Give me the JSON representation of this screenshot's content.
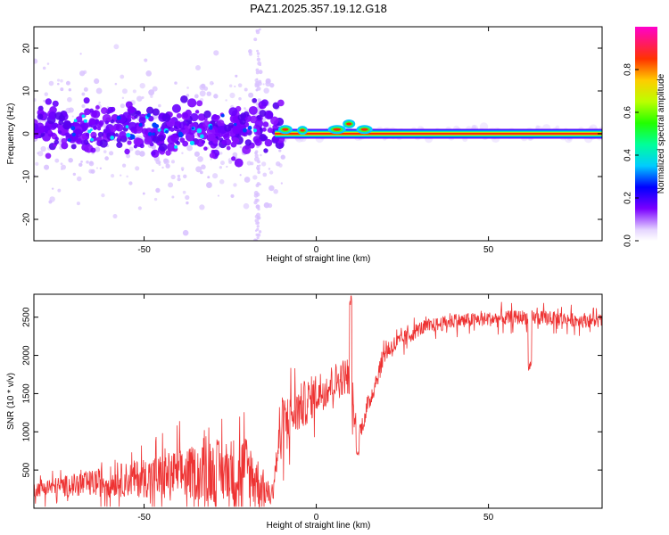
{
  "title": "PAZ1.2025.357.19.12.G18",
  "chart_data": [
    {
      "type": "heatmap",
      "xlabel": "Height of straight line (km)",
      "ylabel": "Frequency (Hz)",
      "xlim": [
        -82,
        83
      ],
      "ylim": [
        -25,
        25
      ],
      "xticks": [
        -50,
        0,
        50
      ],
      "xtick_labels": [
        "-50",
        "0",
        "50"
      ],
      "yticks": [
        -20,
        -10,
        0,
        10,
        20
      ],
      "ytick_labels": [
        "-20",
        "-10",
        "0",
        "10",
        "20"
      ],
      "colorbar": {
        "label": "Normalized spectral amplitude",
        "range": [
          0,
          1
        ],
        "ticks": [
          0.0,
          0.2,
          0.4,
          0.6,
          0.8
        ],
        "tick_labels": [
          "0.0",
          "0.2",
          "0.4",
          "0.6",
          "0.8"
        ]
      },
      "features": {
        "main_tone_frequency_hz": 0,
        "main_tone_start_km": -12,
        "noisy_region_km": [
          -82,
          -12
        ],
        "noisy_spread_hz": [
          -10,
          10
        ],
        "vertical_streak_km": -17
      }
    },
    {
      "type": "line",
      "xlabel": "Height of straight line (km)",
      "ylabel": "SNR (10 * v/v)",
      "xlim": [
        -82,
        83
      ],
      "ylim": [
        0,
        2800
      ],
      "xticks": [
        -50,
        0,
        50
      ],
      "xtick_labels": [
        "-50",
        "0",
        "50"
      ],
      "yticks": [
        500,
        1000,
        1500,
        2000,
        2500
      ],
      "ytick_labels": [
        "500",
        "1000",
        "1500",
        "2000",
        "2500"
      ],
      "series_color": "#ee3333",
      "trend": {
        "x": [
          -82,
          -60,
          -40,
          -20,
          -13,
          -10,
          0,
          9,
          12,
          20,
          30,
          40,
          60,
          83
        ],
        "y": [
          250,
          350,
          450,
          500,
          150,
          1100,
          1500,
          1750,
          900,
          2050,
          2350,
          2450,
          2500,
          2450
        ]
      },
      "noise_envelope": {
        "x": [
          -82,
          -60,
          -40,
          -20,
          -13,
          -10,
          0,
          9,
          12,
          20,
          30,
          40,
          60,
          83
        ],
        "y": [
          120,
          250,
          400,
          600,
          150,
          450,
          350,
          300,
          150,
          180,
          120,
          120,
          120,
          120
        ]
      },
      "dips": [
        {
          "x": 10,
          "y_peak": 2800
        },
        {
          "x": 12,
          "y_min": 700
        },
        {
          "x": 62,
          "y_min": 1800
        }
      ]
    }
  ]
}
